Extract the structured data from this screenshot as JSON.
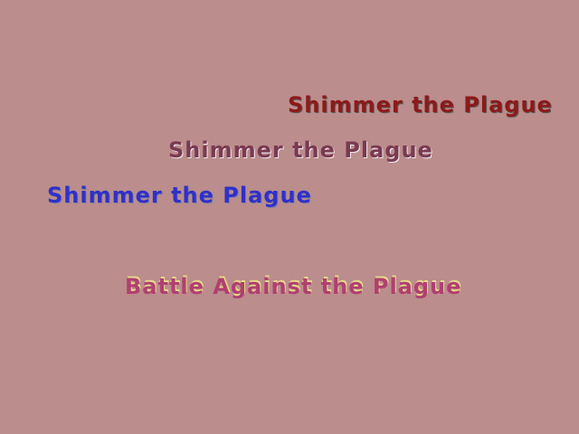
{
  "title_lines": [
    {
      "text": "Shimmer the Plague",
      "color": "#8c1a1a"
    },
    {
      "text": "Shimmer the Plague",
      "color": "#7a3a50"
    },
    {
      "text": "Shimmer the Plague",
      "color": "#3030c8"
    }
  ],
  "subtitle": {
    "text": "Battle Against the Plague",
    "color": "#b04070"
  },
  "background_color": "#bb8d8c"
}
